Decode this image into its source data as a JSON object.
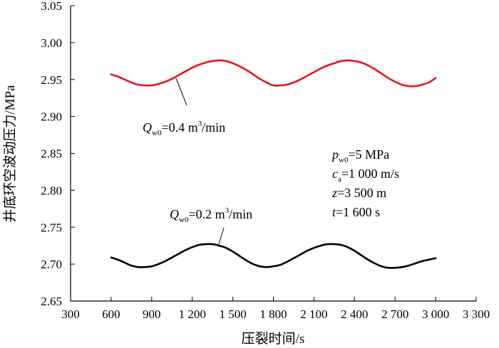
{
  "chart_data": {
    "type": "line",
    "title": "",
    "xlabel": "压裂时间/s",
    "ylabel": "井底环空波动压力/MPa",
    "xlim": [
      300,
      3300
    ],
    "ylim": [
      2.65,
      3.05
    ],
    "xticks": [
      300,
      600,
      900,
      1200,
      1500,
      1800,
      2100,
      2400,
      2700,
      3000,
      3300
    ],
    "xtick_labels": [
      "300",
      "600",
      "900",
      "1 200",
      "1 500",
      "1 800",
      "2 100",
      "2 400",
      "2 700",
      "3 000",
      "3 300"
    ],
    "yticks": [
      2.65,
      2.7,
      2.75,
      2.8,
      2.85,
      2.9,
      2.95,
      3.0,
      3.05
    ],
    "ytick_labels": [
      "2.65",
      "2.70",
      "2.75",
      "2.80",
      "2.85",
      "2.90",
      "2.95",
      "3.00",
      "3.05"
    ],
    "grid": false,
    "series": [
      {
        "name": "Qw0=0.4 m3/min",
        "color": "#e8141c",
        "x": [
          600,
          650,
          700,
          750,
          800,
          850,
          900,
          950,
          1000,
          1050,
          1100,
          1150,
          1200,
          1250,
          1300,
          1350,
          1400,
          1450,
          1500,
          1550,
          1600,
          1650,
          1700,
          1750,
          1800,
          1850,
          1900,
          1950,
          2000,
          2050,
          2100,
          2150,
          2200,
          2250,
          2300,
          2350,
          2400,
          2450,
          2500,
          2550,
          2600,
          2650,
          2700,
          2750,
          2800,
          2850,
          2900,
          2950,
          3000
        ],
        "y": [
          2.957,
          2.954,
          2.95,
          2.946,
          2.943,
          2.942,
          2.942,
          2.944,
          2.947,
          2.951,
          2.956,
          2.961,
          2.966,
          2.97,
          2.973,
          2.975,
          2.976,
          2.975,
          2.972,
          2.968,
          2.963,
          2.957,
          2.951,
          2.946,
          2.942,
          2.942,
          2.943,
          2.946,
          2.95,
          2.955,
          2.96,
          2.965,
          2.969,
          2.972,
          2.975,
          2.976,
          2.975,
          2.973,
          2.969,
          2.964,
          2.958,
          2.952,
          2.947,
          2.943,
          2.941,
          2.941,
          2.943,
          2.946,
          2.952
        ]
      },
      {
        "name": "Qw0=0.2 m3/min",
        "color": "#000000",
        "x": [
          600,
          650,
          700,
          750,
          800,
          850,
          900,
          950,
          1000,
          1050,
          1100,
          1150,
          1200,
          1250,
          1300,
          1350,
          1400,
          1450,
          1500,
          1550,
          1600,
          1650,
          1700,
          1750,
          1800,
          1850,
          1900,
          1950,
          2000,
          2050,
          2100,
          2150,
          2200,
          2250,
          2300,
          2350,
          2400,
          2450,
          2500,
          2550,
          2600,
          2650,
          2700,
          2750,
          2800,
          2850,
          2900,
          2950,
          3000
        ],
        "y": [
          2.709,
          2.706,
          2.702,
          2.698,
          2.696,
          2.696,
          2.697,
          2.7,
          2.704,
          2.709,
          2.714,
          2.719,
          2.723,
          2.726,
          2.727,
          2.727,
          2.725,
          2.722,
          2.717,
          2.711,
          2.705,
          2.7,
          2.697,
          2.696,
          2.697,
          2.699,
          2.703,
          2.708,
          2.713,
          2.718,
          2.722,
          2.725,
          2.727,
          2.727,
          2.726,
          2.723,
          2.718,
          2.712,
          2.706,
          2.701,
          2.697,
          2.695,
          2.695,
          2.696,
          2.698,
          2.701,
          2.704,
          2.706,
          2.708
        ]
      }
    ],
    "annotations": {
      "red_label": {
        "sym": "Q",
        "sub": "w0",
        "text": "=0.4 m",
        "sup": "3",
        "tail": "/min"
      },
      "black_label": {
        "sym": "Q",
        "sub": "w0",
        "text": "=0.2 m",
        "sup": "3",
        "tail": "/min"
      },
      "params": [
        {
          "sym": "p",
          "sub": "w0",
          "text": "=5 MPa"
        },
        {
          "sym": "c",
          "sub": "a",
          "text": "=1 000 m/s"
        },
        {
          "sym": "z",
          "sub": "",
          "text": "=3 500 m"
        },
        {
          "sym": "t",
          "sub": "",
          "text": "=1 600 s"
        }
      ]
    }
  }
}
